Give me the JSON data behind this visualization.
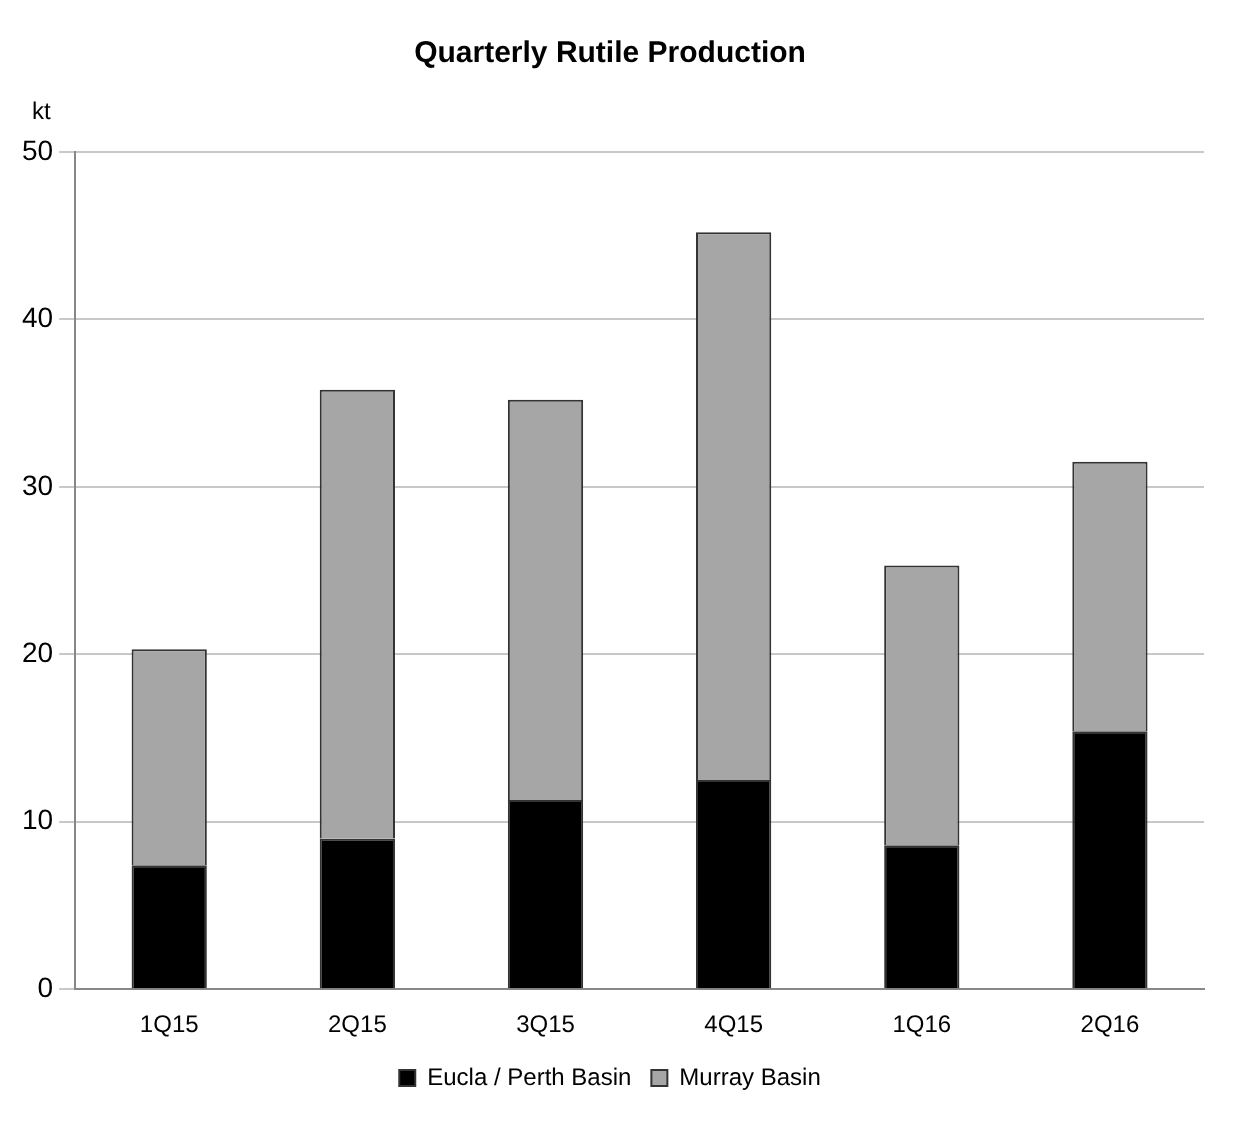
{
  "chart_data": {
    "type": "bar",
    "title": "Quarterly Rutile Production",
    "ylabel": "kt",
    "categories": [
      "1Q15",
      "2Q15",
      "3Q15",
      "4Q15",
      "1Q16",
      "2Q16"
    ],
    "stacked": true,
    "series": [
      {
        "name": "Eucla / Perth Basin",
        "color": "#000000",
        "values": [
          7.4,
          9.0,
          11.3,
          12.5,
          8.6,
          15.4
        ]
      },
      {
        "name": "Murray Basin",
        "color": "#a6a6a6",
        "values": [
          12.9,
          26.8,
          23.9,
          32.7,
          16.7,
          16.1
        ]
      }
    ],
    "ylim": [
      0,
      50
    ],
    "yticks": [
      0,
      10,
      20,
      30,
      40,
      50
    ],
    "grid": "y",
    "legend": "bottom"
  }
}
